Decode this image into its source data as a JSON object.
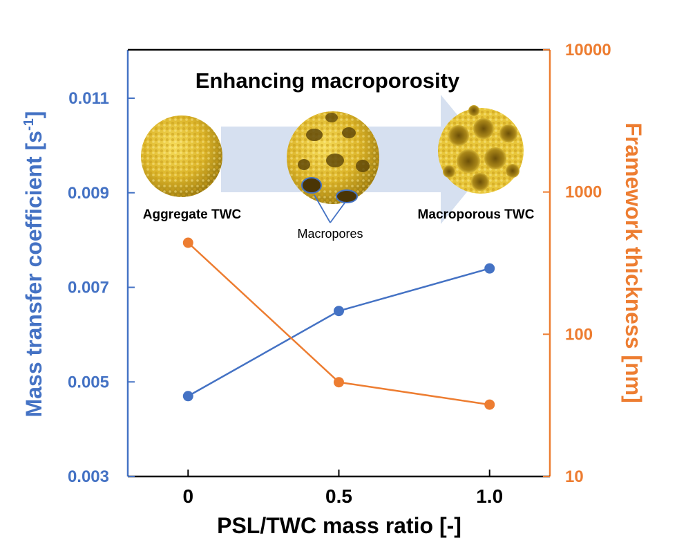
{
  "chart_data": {
    "type": "line",
    "title": "Enhancing macroporosity",
    "xlabel": "PSL/TWC mass ratio [-]",
    "ylabel_left": "Mass transfer coefficient [s",
    "ylabel_left_sup": "-1",
    "ylabel_left_end": "]",
    "ylabel_right": "Framework thickness [nm]",
    "x_ticks": [
      "0",
      "0.5",
      "1.0"
    ],
    "x": [
      0,
      0.5,
      1.0
    ],
    "xlim": [
      -0.2,
      1.2
    ],
    "y_left_ticks": [
      "0.011",
      "0.009",
      "0.007",
      "0.005",
      "0.003"
    ],
    "y_left_lim": [
      0.003,
      0.012
    ],
    "y_right_ticks": [
      "10000",
      "1000",
      "100",
      "10"
    ],
    "y_right_lim": [
      10,
      10000
    ],
    "y_right_scale": "log",
    "series": [
      {
        "name": "Mass transfer coefficient",
        "axis": "left",
        "color": "#4472c4",
        "values": [
          0.0047,
          0.0065,
          0.0074
        ]
      },
      {
        "name": "Framework thickness",
        "axis": "right",
        "color": "#ed7d31",
        "values": [
          440,
          46,
          32
        ]
      }
    ],
    "annotations": {
      "left_particle": "Aggregate TWC",
      "right_particle": "Macroporous TWC",
      "middle_label": "Macropores"
    },
    "colors": {
      "left_axis": "#4472c4",
      "right_axis": "#ed7d31",
      "arrow": "#d6e0f0",
      "particle": "#e8c42a"
    }
  }
}
